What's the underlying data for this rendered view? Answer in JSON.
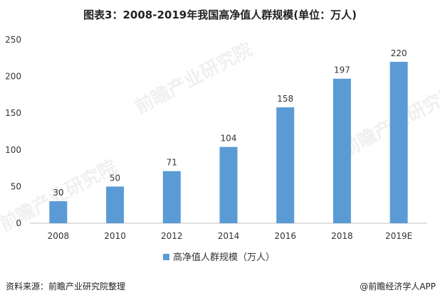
{
  "title": "图表3：2008-2019年我国高净值人群规模(单位：万人)",
  "source": "资料来源：前瞻产业研究院整理",
  "brand": "@前瞻经济学人APP",
  "watermark_text": "前瞻产业研究院",
  "colors": {
    "bar": "#5b9bd5",
    "axis": "#bfbfbf",
    "text": "#333333"
  },
  "chart_data": {
    "type": "bar",
    "title": "图表3：2008-2019年我国高净值人群规模(单位：万人)",
    "categories": [
      "2008",
      "2010",
      "2012",
      "2014",
      "2016",
      "2018",
      "2019E"
    ],
    "series": [
      {
        "name": "高净值人群规模（万人）",
        "values": [
          30,
          50,
          71,
          104,
          158,
          197,
          220
        ]
      }
    ],
    "yticks": [
      0,
      50,
      100,
      150,
      200,
      250
    ],
    "ylim": [
      0,
      250
    ],
    "grid": false,
    "legend": "bottom"
  }
}
